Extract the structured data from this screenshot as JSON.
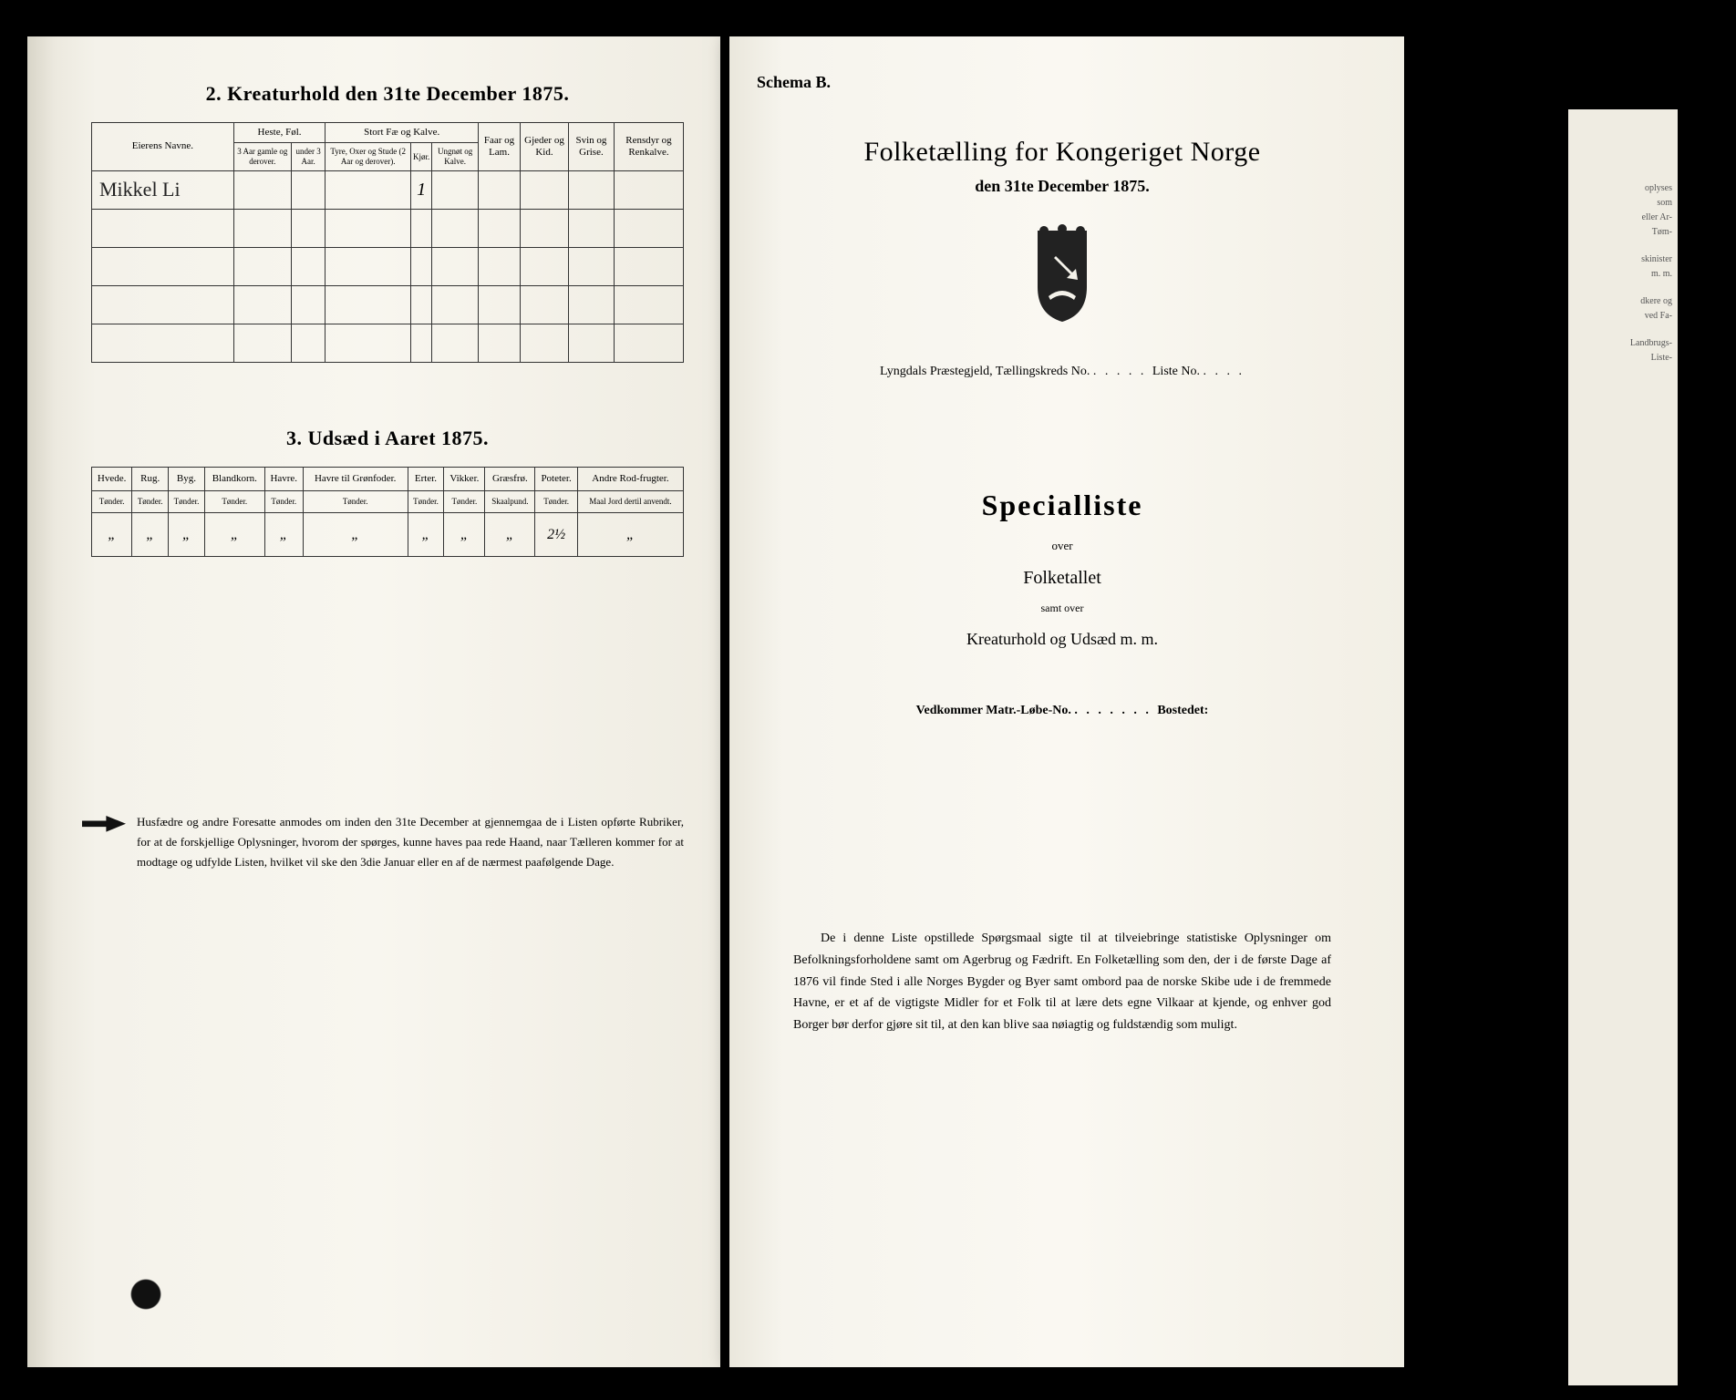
{
  "left": {
    "section2_title": "2.  Kreaturhold den 31te December 1875.",
    "table1": {
      "col_owner": "Eierens Navne.",
      "grp_horse": "Heste, Føl.",
      "col_horse_a": "3 Aar gamle og derover.",
      "col_horse_b": "under 3 Aar.",
      "grp_cattle": "Stort Fæ og Kalve.",
      "col_cattle_a": "Tyre, Oxer og Stude (2 Aar og derover).",
      "col_cattle_b": "Kjør.",
      "col_cattle_c": "Ungnøt og Kalve.",
      "col_sheep": "Faar og Lam.",
      "col_goat": "Gjeder og Kid.",
      "col_pig": "Svin og Grise.",
      "col_reindeer": "Rensdyr og Renkalve.",
      "rows": [
        {
          "name": "Mikkel Li",
          "kjor": "1"
        },
        {
          "name": "",
          "kjor": ""
        },
        {
          "name": "",
          "kjor": ""
        },
        {
          "name": "",
          "kjor": ""
        },
        {
          "name": "",
          "kjor": ""
        }
      ]
    },
    "section3_title": "3.  Udsæd i Aaret 1875.",
    "table2": {
      "cols": [
        {
          "h": "Hvede.",
          "s": "Tønder."
        },
        {
          "h": "Rug.",
          "s": "Tønder."
        },
        {
          "h": "Byg.",
          "s": "Tønder."
        },
        {
          "h": "Blandkorn.",
          "s": "Tønder."
        },
        {
          "h": "Havre.",
          "s": "Tønder."
        },
        {
          "h": "Havre til Grønfoder.",
          "s": "Tønder."
        },
        {
          "h": "Erter.",
          "s": "Tønder."
        },
        {
          "h": "Vikker.",
          "s": "Tønder."
        },
        {
          "h": "Græsfrø.",
          "s": "Skaalpund."
        },
        {
          "h": "Poteter.",
          "s": "Tønder."
        },
        {
          "h": "Andre Rod-frugter.",
          "s": "Maal Jord dertil anvendt."
        }
      ],
      "data": [
        "„",
        "„",
        "„",
        "„",
        "„",
        "„",
        "„",
        "„",
        "„",
        "2½",
        "„"
      ]
    },
    "footnote": "Husfædre og andre Foresatte anmodes om inden den 31te December at gjennemgaa de i Listen opførte Rubriker, for at de forskjellige Oplysninger, hvorom der spørges, kunne haves paa rede Haand, naar Tælleren kommer for at modtage og udfylde Listen, hvilket vil ske den 3die Januar eller en af de nærmest paafølgende Dage."
  },
  "right": {
    "schema": "Schema B.",
    "title1": "Folketælling for Kongeriget Norge",
    "title2": "den 31te December 1875.",
    "line_prest": "Lyngdals Præstegjeld, Tællingskreds No.",
    "line_liste": "Liste No.",
    "special": "Specialliste",
    "over": "over",
    "folketallet": "Folketallet",
    "samt": "samt over",
    "kreatur": "Kreaturhold og Udsæd m. m.",
    "vedkommer": "Vedkommer Matr.-Løbe-No.",
    "bostedet": "Bostedet:",
    "body": "De i denne Liste opstillede Spørgsmaal sigte til at tilveiebringe statistiske Oplysninger om Befolkningsforholdene samt om Agerbrug og Fædrift. En Folketælling som den, der i de første Dage af 1876 vil finde Sted i alle Norges Bygder og Byer samt ombord paa de norske Skibe ude i de fremmede Havne, er et af de vigtigste Midler for et Folk til at lære dets egne Vilkaar at kjende, og enhver god Borger bør derfor gjøre sit til, at den kan blive saa nøiagtig og fuldstændig som muligt."
  },
  "colors": {
    "paper": "#f4f2ea",
    "ink": "#1a1a1a",
    "border": "#333333"
  }
}
